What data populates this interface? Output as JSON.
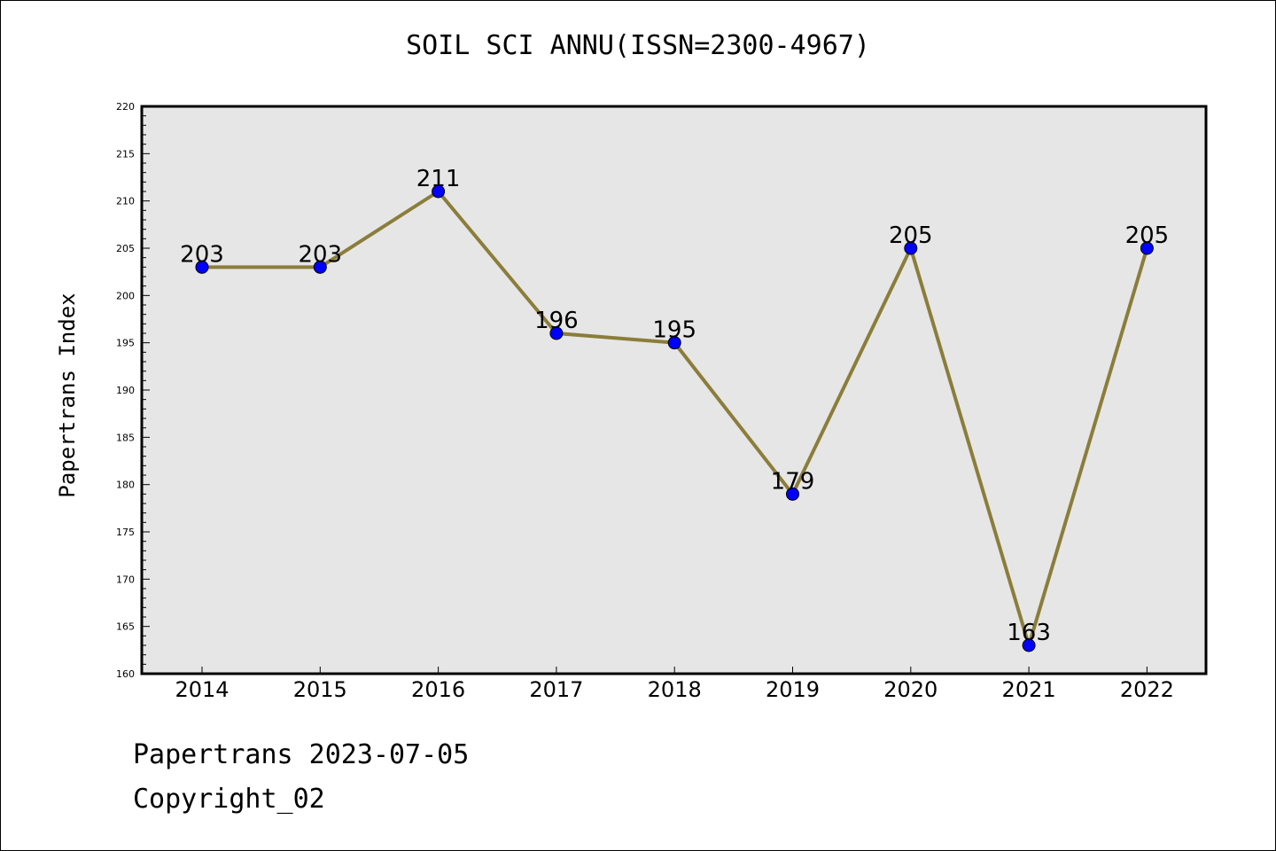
{
  "chart_data": {
    "type": "line",
    "title": "SOIL SCI ANNU(ISSN=2300-4967)",
    "xlabel": "",
    "ylabel": "Papertrans Index",
    "categories": [
      "2014",
      "2015",
      "2016",
      "2017",
      "2018",
      "2019",
      "2020",
      "2021",
      "2022"
    ],
    "series": [
      {
        "values": [
          203,
          203,
          211,
          196,
          195,
          179,
          205,
          163,
          205
        ]
      }
    ],
    "ylim": [
      160,
      220
    ],
    "yticks": [
      160,
      165,
      170,
      175,
      180,
      185,
      190,
      195,
      200,
      205,
      210,
      215,
      220
    ],
    "grid": false,
    "legend": "none",
    "data_labels": true,
    "colors": {
      "line": "#8B7D3A",
      "marker": "#0000FF",
      "plot_background": "#E6E6E6"
    }
  },
  "footer": {
    "line1": "Papertrans 2023-07-05",
    "line2": "Copyright_02"
  }
}
